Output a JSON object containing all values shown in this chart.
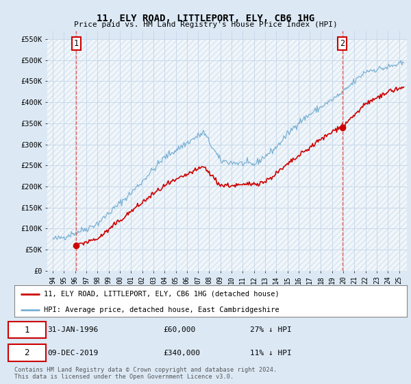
{
  "title": "11, ELY ROAD, LITTLEPORT, ELY, CB6 1HG",
  "subtitle": "Price paid vs. HM Land Registry's House Price Index (HPI)",
  "background_color": "#dce9f5",
  "plot_bg_color": "#dce9f5",
  "grid_color": "#c8d8ea",
  "red_line_color": "#cc0000",
  "blue_line_color": "#7ab0d4",
  "dashed_line_color": "#dd4444",
  "point1_year": 1996.08,
  "point1_value": 60000,
  "point2_year": 2019.92,
  "point2_value": 340000,
  "ylabel_ticks": [
    "£0",
    "£50K",
    "£100K",
    "£150K",
    "£200K",
    "£250K",
    "£300K",
    "£350K",
    "£400K",
    "£450K",
    "£500K",
    "£550K"
  ],
  "ytick_values": [
    0,
    50000,
    100000,
    150000,
    200000,
    250000,
    300000,
    350000,
    400000,
    450000,
    500000,
    550000
  ],
  "xmin": 1993.5,
  "xmax": 2025.7,
  "ymin": 0,
  "ymax": 570000,
  "legend_label_red": "11, ELY ROAD, LITTLEPORT, ELY, CB6 1HG (detached house)",
  "legend_label_blue": "HPI: Average price, detached house, East Cambridgeshire",
  "footer": "Contains HM Land Registry data © Crown copyright and database right 2024.\nThis data is licensed under the Open Government Licence v3.0.",
  "xtick_years": [
    1994,
    1995,
    1996,
    1997,
    1998,
    1999,
    2000,
    2001,
    2002,
    2003,
    2004,
    2005,
    2006,
    2007,
    2008,
    2009,
    2010,
    2011,
    2012,
    2013,
    2014,
    2015,
    2016,
    2017,
    2018,
    2019,
    2020,
    2021,
    2022,
    2023,
    2024,
    2025
  ]
}
